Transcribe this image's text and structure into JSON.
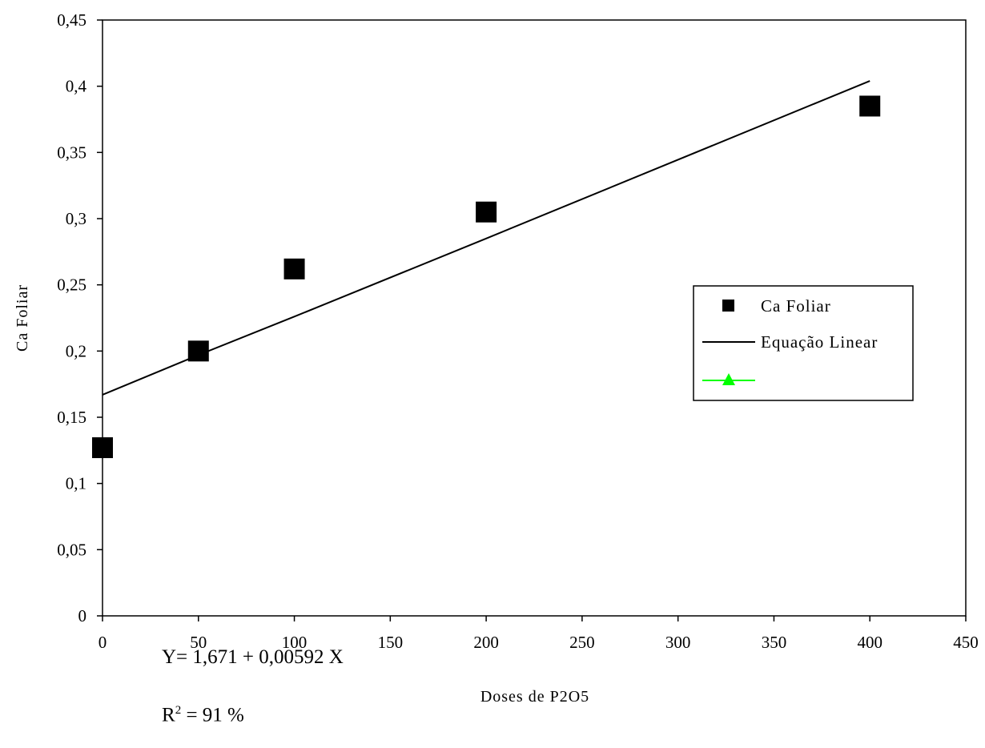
{
  "chart_data": {
    "type": "scatter",
    "xlabel": "Doses de P2O5",
    "ylabel": "Ca Foliar",
    "xlim": [
      0,
      450
    ],
    "ylim": [
      0,
      0.45
    ],
    "x_ticks": [
      "0",
      "50",
      "100",
      "150",
      "200",
      "250",
      "300",
      "350",
      "400",
      "450"
    ],
    "y_ticks": [
      "0",
      "0,05",
      "0,1",
      "0,15",
      "0,2",
      "0,25",
      "0,3",
      "0,35",
      "0,4",
      "0,45"
    ],
    "grid": false,
    "legend_position": "right",
    "series": [
      {
        "name": "Ca Foliar",
        "kind": "markers",
        "marker": "square",
        "color": "#000000",
        "x": [
          0,
          50,
          100,
          200,
          400
        ],
        "y": [
          0.127,
          0.2,
          0.262,
          0.305,
          0.385
        ]
      },
      {
        "name": "Equação Linear",
        "kind": "line",
        "color": "#000000",
        "x": [
          0,
          50,
          100,
          200,
          400
        ],
        "y": [
          0.167,
          0.197,
          0.226,
          0.285,
          0.404
        ]
      },
      {
        "name": "",
        "kind": "line-marker",
        "marker": "triangle",
        "color": "#00ff00",
        "x": [],
        "y": []
      }
    ],
    "annotations": {
      "equation": "Y= 1,671 + 0,00592 X",
      "r2_prefix": "R",
      "r2_sup": "2",
      "r2_suffix": " = 91 %"
    }
  }
}
